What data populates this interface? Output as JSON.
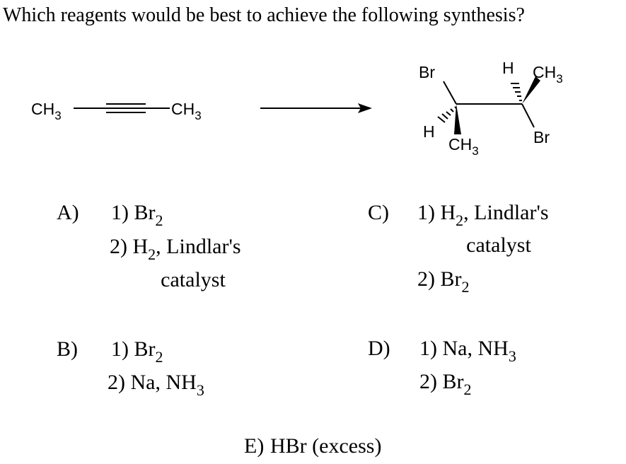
{
  "question": "Which reagents would be best to achieve the following synthesis?",
  "reactant": {
    "left": [
      "CH",
      "3"
    ],
    "right": [
      "CH",
      "3"
    ]
  },
  "product": {
    "c1_top": [
      "Br"
    ],
    "c1_hash": [
      "H"
    ],
    "c1_wedge": [
      "CH",
      "3"
    ],
    "c2_hash": [
      "H"
    ],
    "c2_wedge": [
      "CH",
      "3"
    ],
    "c2_down": [
      "Br"
    ]
  },
  "options": [
    {
      "letter": "A)",
      "lines": [
        [
          "1) Br",
          "2"
        ],
        [
          "2) H",
          "2",
          ", Lindlar's"
        ],
        [
          "catalyst"
        ]
      ]
    },
    {
      "letter": "B)",
      "lines": [
        [
          "1) Br",
          "2"
        ],
        [
          "2) Na, NH",
          "3"
        ]
      ]
    },
    {
      "letter": "C)",
      "lines": [
        [
          "1) H",
          "2",
          ", Lindlar's"
        ],
        [
          "catalyst"
        ],
        [
          "2) Br",
          "2"
        ]
      ]
    },
    {
      "letter": "D)",
      "lines": [
        [
          "1) Na, NH",
          "3"
        ],
        [
          "2) Br",
          "2"
        ]
      ]
    },
    {
      "letter": "E)",
      "lines": [
        [
          "HBr (excess)"
        ]
      ]
    }
  ]
}
